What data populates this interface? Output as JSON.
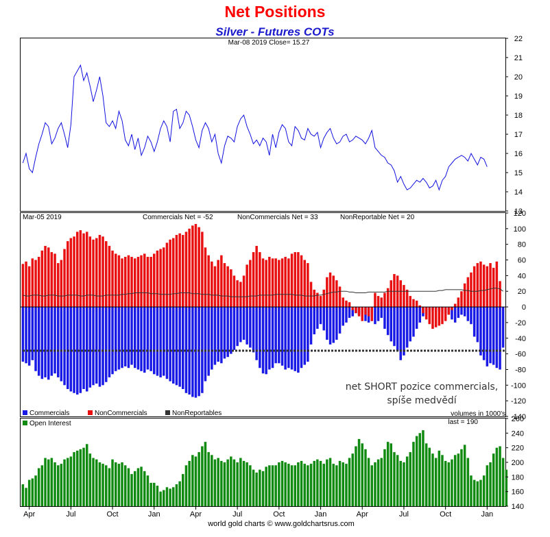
{
  "title": "Net Positions",
  "subtitle": "Silver - Futures COTs",
  "footer": "world gold charts © www.goldchartsrus.com",
  "colors": {
    "price": "#1010e0",
    "commercials": "#1a1ae6",
    "noncommercials": "#e81010",
    "nonreportables": "#333333",
    "open_interest": "#108a10"
  },
  "chart_data": [
    {
      "type": "line",
      "header": "Mar-08  2019   Close= 15.27",
      "ylim": [
        13,
        22
      ],
      "yticks": [
        "13",
        "14",
        "15",
        "16",
        "17",
        "18",
        "19",
        "20",
        "21",
        "22"
      ],
      "xticks": [
        "Apr",
        "Jul",
        "Oct",
        "Jan",
        "Apr",
        "Jul",
        "Oct",
        "Jan",
        "Apr",
        "Jul",
        "Oct",
        "Jan"
      ],
      "x_week_of_tick": [
        2,
        15,
        28,
        41,
        54,
        67,
        80,
        93,
        106,
        119,
        132,
        145
      ],
      "series": [
        {
          "values": [
            15.5,
            16,
            15.2,
            15,
            15.8,
            16.5,
            17,
            17.6,
            17.4,
            16.5,
            16.8,
            17.3,
            17.6,
            17,
            16.3,
            17.5,
            20,
            20.3,
            20.6,
            19.8,
            20.2,
            19.5,
            18.7,
            19.3,
            20,
            19,
            17.6,
            17.4,
            17.7,
            17.3,
            18.2,
            17.7,
            16.7,
            16.4,
            17,
            16.2,
            16.8,
            15.9,
            16.3,
            16.9,
            16.6,
            16.1,
            16.6,
            17.3,
            17.7,
            17.4,
            16.6,
            18.2,
            18.3,
            17.3,
            17.6,
            18.2,
            18,
            17.4,
            16.7,
            16.3,
            17.2,
            17.6,
            17.3,
            16.6,
            17,
            16,
            15.5,
            16.4,
            16.9,
            16.8,
            16.6,
            17.4,
            17.8,
            18,
            17.4,
            17,
            16.5,
            16.7,
            16.4,
            16.8,
            16.6,
            15.9,
            17,
            16.3,
            17.1,
            17.5,
            17.3,
            16.6,
            16.4,
            17.4,
            17.2,
            16.8,
            16.7,
            17.3,
            17,
            16.9,
            17.1,
            16.3,
            16.8,
            17.1,
            17.3,
            16.8,
            16.5,
            16.6,
            16.9,
            17,
            16.6,
            16.7,
            16.9,
            16.8,
            16.7,
            16.5,
            16.8,
            17.2,
            16.3,
            16.1,
            15.9,
            15.8,
            15.5,
            15.4,
            15.1,
            14.5,
            14.8,
            14.4,
            14.1,
            14.2,
            14.4,
            14.6,
            14.5,
            14.7,
            14.5,
            14.2,
            14.3,
            14.6,
            14.1,
            14.6,
            14.8,
            15.3,
            15.5,
            15.7,
            15.8,
            15.9,
            15.8,
            15.6,
            16,
            15.7,
            15.4,
            15.8,
            15.7,
            15.3
          ]
        }
      ]
    },
    {
      "type": "bar",
      "header": {
        "date": "Mar-05  2019",
        "commercials": "Commercials Net = -52",
        "noncommercials": "NonCommercials Net = 33",
        "nonreportables": "NonReportable Net = 20"
      },
      "ylim": [
        -140,
        120
      ],
      "yticks": [
        "-140",
        "-120",
        "-100",
        "-80",
        "-60",
        "-40",
        "-20",
        "0",
        "20",
        "40",
        "60",
        "80",
        "100",
        "120"
      ],
      "legend": [
        "Commercials",
        "NonCommercials",
        "NonReportables"
      ],
      "units_note": "volumes in 1000's",
      "annotation": [
        "net SHORT pozice commercials,",
        "spíše medvědí"
      ],
      "series": [
        {
          "name": "Commercials",
          "values": [
            -70,
            -72,
            -75,
            -68,
            -82,
            -88,
            -92,
            -90,
            -93,
            -88,
            -85,
            -90,
            -95,
            -100,
            -105,
            -108,
            -110,
            -112,
            -110,
            -105,
            -108,
            -103,
            -100,
            -98,
            -102,
            -100,
            -96,
            -90,
            -86,
            -82,
            -80,
            -78,
            -76,
            -78,
            -74,
            -78,
            -80,
            -82,
            -84,
            -80,
            -82,
            -86,
            -88,
            -90,
            -88,
            -92,
            -95,
            -98,
            -100,
            -102,
            -105,
            -110,
            -112,
            -115,
            -116,
            -114,
            -110,
            -95,
            -88,
            -80,
            -74,
            -70,
            -72,
            -66,
            -64,
            -60,
            -55,
            -50,
            -45,
            -42,
            -48,
            -52,
            -58,
            -68,
            -78,
            -85,
            -86,
            -80,
            -78,
            -72,
            -72,
            -75,
            -80,
            -78,
            -80,
            -82,
            -84,
            -78,
            -74,
            -70,
            -48,
            -35,
            -28,
            -22,
            -30,
            -42,
            -48,
            -46,
            -42,
            -34,
            -24,
            -20,
            -14,
            -12,
            -8,
            -10,
            -14,
            -18,
            -20,
            -18,
            -22,
            -18,
            -14,
            -28,
            -36,
            -44,
            -50,
            -56,
            -68,
            -62,
            -52,
            -44,
            -38,
            -28,
            -20,
            -12,
            -10,
            -6,
            -4,
            -2,
            -6,
            -2,
            -8,
            -10,
            -16,
            -20,
            -14,
            -10,
            -12,
            -18,
            -22,
            -38,
            -45,
            -62,
            -68,
            -76,
            -72,
            -74,
            -78,
            -80,
            -52
          ]
        },
        {
          "name": "NonCommercials",
          "values": [
            55,
            58,
            52,
            62,
            60,
            64,
            72,
            78,
            76,
            70,
            68,
            56,
            60,
            74,
            84,
            88,
            90,
            96,
            98,
            94,
            96,
            90,
            86,
            88,
            92,
            90,
            84,
            78,
            72,
            68,
            66,
            62,
            64,
            66,
            64,
            62,
            64,
            66,
            68,
            64,
            64,
            68,
            72,
            74,
            76,
            82,
            86,
            88,
            92,
            94,
            92,
            96,
            100,
            104,
            106,
            102,
            96,
            76,
            66,
            58,
            52,
            60,
            66,
            56,
            52,
            48,
            40,
            34,
            32,
            40,
            54,
            60,
            70,
            78,
            70,
            62,
            60,
            64,
            62,
            62,
            60,
            62,
            64,
            62,
            68,
            70,
            70,
            66,
            60,
            56,
            32,
            22,
            18,
            14,
            22,
            38,
            44,
            40,
            34,
            26,
            12,
            8,
            6,
            -4,
            -8,
            -12,
            -18,
            -10,
            -12,
            -18,
            18,
            14,
            12,
            18,
            24,
            34,
            42,
            40,
            34,
            28,
            22,
            14,
            10,
            8,
            2,
            -8,
            -16,
            -22,
            -28,
            -26,
            -24,
            -22,
            -18,
            -10,
            -4,
            4,
            12,
            20,
            30,
            38,
            44,
            52,
            56,
            58,
            54,
            52,
            56,
            50,
            58,
            33
          ]
        },
        {
          "name": "NonReportables",
          "values": [
            15,
            14,
            14,
            15,
            15,
            15,
            14,
            14,
            15,
            15,
            15,
            14,
            14,
            14,
            15,
            15,
            15,
            15,
            14,
            14,
            15,
            15,
            15,
            14,
            14,
            14,
            15,
            15,
            15,
            15,
            15,
            16,
            16,
            17,
            17,
            18,
            18,
            18,
            18,
            18,
            17,
            17,
            17,
            16,
            16,
            16,
            16,
            17,
            17,
            18,
            18,
            18,
            18,
            17,
            17,
            17,
            16,
            16,
            16,
            15,
            15,
            15,
            14,
            14,
            14,
            13,
            13,
            13,
            13,
            13,
            13,
            14,
            14,
            14,
            15,
            15,
            15,
            15,
            15,
            16,
            16,
            16,
            16,
            16,
            16,
            15,
            15,
            15,
            14,
            14,
            14,
            14,
            15,
            15,
            16,
            17,
            18,
            19,
            19,
            20,
            20,
            20,
            19,
            19,
            18,
            18,
            18,
            18,
            19,
            19,
            19,
            19,
            19,
            19,
            20,
            20,
            20,
            20,
            20,
            20,
            20,
            20,
            20,
            20,
            20,
            20,
            20,
            20,
            20,
            20,
            21,
            21,
            22,
            22,
            22,
            22,
            22,
            22,
            21,
            21,
            20,
            20,
            20,
            21,
            21,
            22,
            23,
            24,
            24,
            23,
            20
          ]
        }
      ],
      "reference_line": -56
    },
    {
      "type": "bar",
      "header": "last = 190",
      "ylim": [
        140,
        260
      ],
      "yticks": [
        "140",
        "160",
        "180",
        "200",
        "220",
        "240",
        "260"
      ],
      "legend": [
        "Open Interest"
      ],
      "series": [
        {
          "name": "Open Interest",
          "values": [
            170,
            165,
            176,
            178,
            182,
            192,
            196,
            206,
            204,
            206,
            200,
            196,
            198,
            204,
            206,
            208,
            214,
            216,
            218,
            220,
            225,
            212,
            206,
            204,
            200,
            198,
            196,
            192,
            204,
            200,
            198,
            200,
            196,
            192,
            184,
            188,
            192,
            194,
            188,
            182,
            172,
            172,
            168,
            160,
            162,
            166,
            164,
            166,
            170,
            174,
            184,
            196,
            202,
            210,
            208,
            214,
            222,
            228,
            214,
            210,
            204,
            206,
            202,
            200,
            204,
            208,
            204,
            200,
            206,
            202,
            200,
            196,
            190,
            186,
            190,
            188,
            194,
            196,
            196,
            196,
            200,
            202,
            200,
            198,
            196,
            196,
            200,
            202,
            198,
            196,
            198,
            202,
            204,
            202,
            198,
            204,
            206,
            198,
            196,
            202,
            200,
            198,
            206,
            212,
            222,
            232,
            226,
            218,
            206,
            196,
            200,
            204,
            206,
            218,
            228,
            226,
            214,
            210,
            202,
            200,
            208,
            214,
            228,
            236,
            240,
            244,
            226,
            220,
            212,
            206,
            216,
            210,
            202,
            200,
            204,
            210,
            212,
            218,
            224,
            206,
            182,
            176,
            174,
            176,
            182,
            196,
            200,
            212,
            220,
            222,
            206,
            190
          ]
        }
      ]
    }
  ]
}
